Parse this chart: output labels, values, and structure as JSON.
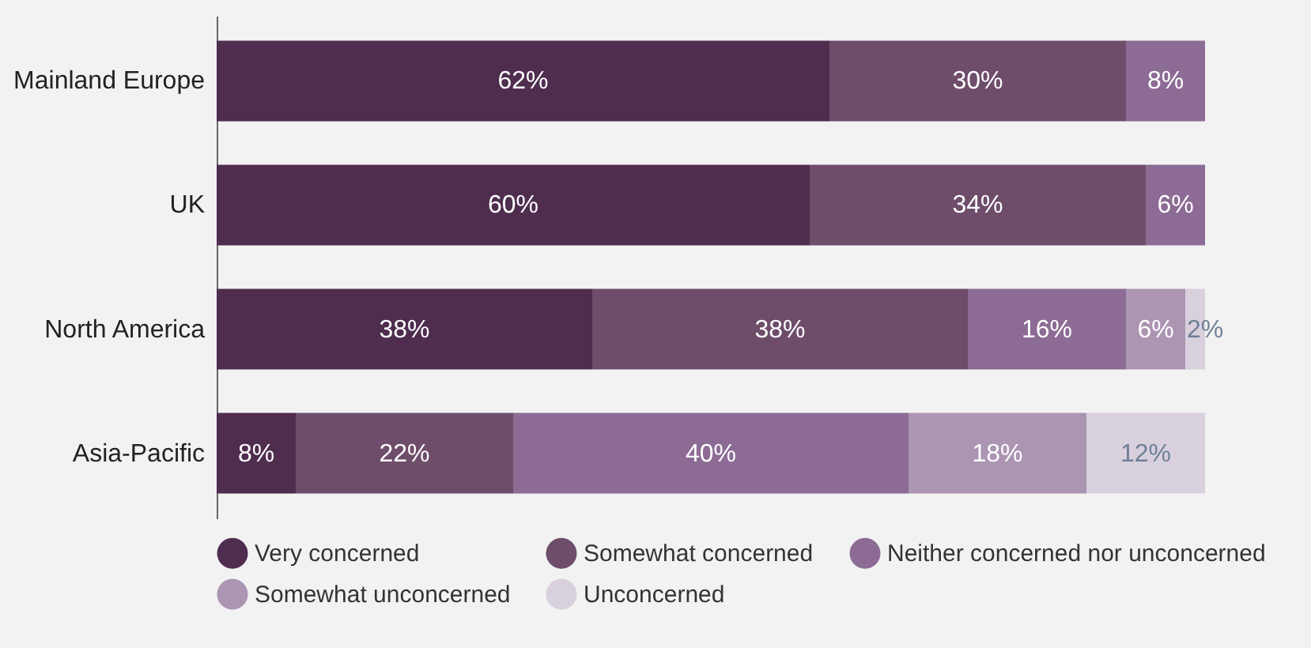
{
  "chart_data": {
    "type": "bar",
    "orientation": "horizontal",
    "stacked": true,
    "legend": "bottom",
    "categories": [
      "Mainland Europe",
      "UK",
      "North America",
      "Asia-Pacific"
    ],
    "series": [
      {
        "name": "Very concerned",
        "color": "#4f2d4f",
        "values": [
          62,
          60,
          38,
          8
        ],
        "value_labels": [
          "62%",
          "60%",
          "38%",
          "8%"
        ]
      },
      {
        "name": "Somewhat concerned",
        "color": "#6e4d6a",
        "values": [
          30,
          34,
          38,
          22
        ],
        "value_labels": [
          "30%",
          "34%",
          "38%",
          "22%"
        ]
      },
      {
        "name": "Neither concerned nor unconcerned",
        "color": "#8c6b94",
        "values": [
          8,
          6,
          16,
          40
        ],
        "value_labels": [
          "8%",
          "6%",
          "16%",
          "40%"
        ]
      },
      {
        "name": "Somewhat unconcerned",
        "color": "#ab95b3",
        "values": [
          null,
          null,
          6,
          18
        ],
        "value_labels": [
          null,
          null,
          "6%",
          "18%"
        ]
      },
      {
        "name": "Unconcerned",
        "color": "#d9d0de",
        "values": [
          null,
          null,
          2,
          12
        ],
        "value_labels": [
          null,
          null,
          "2%",
          "12%"
        ]
      }
    ]
  }
}
